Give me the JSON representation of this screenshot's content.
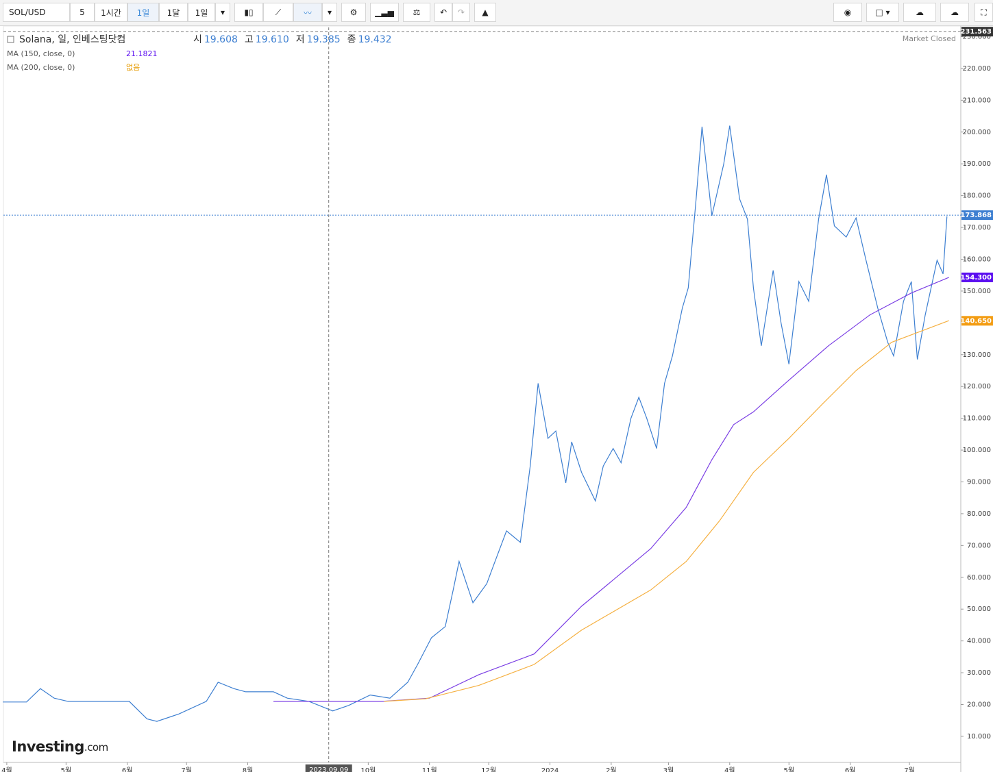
{
  "toolbar": {
    "symbol": "SOL/USD",
    "intervals": [
      "5",
      "1시간",
      "1일",
      "1달",
      "1일"
    ],
    "active": 2
  },
  "chart_data": {
    "type": "line",
    "title": "Solana, 일, 인베스팅닷컴",
    "ohlc": [
      {
        "label": "시",
        "text": "19.608"
      },
      {
        "label": "고",
        "text": "19.610"
      },
      {
        "label": "저",
        "text": "19.385"
      },
      {
        "label": "종",
        "text": "19.432"
      }
    ],
    "indicator_values": [
      "21.1821",
      "없음"
    ],
    "status": "Market Closed",
    "watermark": [
      "Investing",
      ".com"
    ],
    "series": [
      {
        "name": "Solana, 일, 인베스팅닷컴",
        "color": "#3d7fd1",
        "x": [
          -2,
          10,
          17,
          24,
          31,
          49,
          62,
          71,
          76,
          87,
          101,
          107,
          115,
          121,
          135,
          142,
          153,
          165,
          173,
          184,
          194,
          203,
          208,
          215,
          222,
          226,
          229,
          236,
          243,
          246,
          253,
          260,
          265,
          269,
          274,
          278,
          283,
          286,
          291,
          298,
          302,
          307,
          311,
          316,
          320,
          324,
          329,
          333,
          337,
          342,
          345,
          349,
          352,
          357,
          363,
          366,
          371,
          375,
          378,
          382,
          388,
          392,
          396,
          401,
          406,
          411,
          415,
          419,
          425,
          430,
          435,
          441,
          446,
          449,
          454,
          458,
          461,
          465,
          471,
          474,
          476
        ],
        "values": [
          20.8,
          20.8,
          25,
          22,
          21,
          21,
          21,
          15.5,
          14.7,
          17,
          21,
          27,
          25,
          24,
          24,
          22,
          21,
          18,
          19.7,
          23,
          22,
          27,
          32.6,
          41,
          44.5,
          56,
          65,
          52,
          58,
          63,
          74.6,
          71,
          95,
          121,
          103.7,
          106,
          89.7,
          102.6,
          93,
          84,
          95,
          100.5,
          96,
          110,
          116.6,
          110,
          100.5,
          121,
          129.6,
          144.6,
          151,
          179,
          201.7,
          173.7,
          190,
          202,
          179,
          172.6,
          151,
          132.8,
          156.5,
          140,
          127,
          153,
          146.8,
          172.6,
          186.6,
          170.5,
          167,
          173,
          159.7,
          144.6,
          133.9,
          129.6,
          146.8,
          153,
          128.5,
          142.5,
          159.7,
          155.4,
          173.5
        ]
      },
      {
        "name": "MA (150, close, 0)",
        "color": "#7b3fe4",
        "x": [
          135,
          190,
          214,
          239,
          267,
          291,
          326,
          344,
          357,
          368,
          378,
          396,
          416,
          437,
          458,
          477
        ],
        "values": [
          21,
          21,
          22,
          29.4,
          35.9,
          50.9,
          69,
          82,
          97,
          108,
          112,
          122,
          132.8,
          142.5,
          149.4,
          154.3
        ]
      },
      {
        "name": "MA (200, close, 0)",
        "color": "#f5b041",
        "x": [
          191,
          212,
          239,
          267,
          291,
          326,
          344,
          361,
          378,
          396,
          413,
          430,
          448,
          477
        ],
        "values": [
          21,
          21.8,
          26,
          32.6,
          43.4,
          56,
          65,
          77.9,
          93,
          103.7,
          114.5,
          125,
          133.9,
          140.7
        ]
      }
    ],
    "xlim": [
      -1.7,
      483
    ],
    "ylim": [
      1.8,
      232.9
    ],
    "xticks": [
      {
        "value": 0,
        "label": "4월"
      },
      {
        "value": 30,
        "label": "5월"
      },
      {
        "value": 61,
        "label": "6월"
      },
      {
        "value": 91,
        "label": "7월"
      },
      {
        "value": 122,
        "label": "8월"
      },
      {
        "value": 183,
        "label": "10월"
      },
      {
        "value": 214,
        "label": "11월"
      },
      {
        "value": 244,
        "label": "12월"
      },
      {
        "value": 275,
        "label": "2024"
      },
      {
        "value": 306,
        "label": "2월"
      },
      {
        "value": 335,
        "label": "3월"
      },
      {
        "value": 366,
        "label": "4월"
      },
      {
        "value": 396,
        "label": "5월"
      },
      {
        "value": 427,
        "label": "6월"
      },
      {
        "value": 457,
        "label": "7월"
      }
    ],
    "yticks": [
      {
        "value": 10,
        "label": "10.000"
      },
      {
        "value": 20,
        "label": "20.000"
      },
      {
        "value": 30,
        "label": "30.000"
      },
      {
        "value": 40,
        "label": "40.000"
      },
      {
        "value": 50,
        "label": "50.000"
      },
      {
        "value": 60,
        "label": "60.000"
      },
      {
        "value": 70,
        "label": "70.000"
      },
      {
        "value": 80,
        "label": "80.000"
      },
      {
        "value": 90,
        "label": "90.000"
      },
      {
        "value": 100,
        "label": "100.000"
      },
      {
        "value": 110,
        "label": "110.000"
      },
      {
        "value": 120,
        "label": "120.000"
      },
      {
        "value": 130,
        "label": "130.000"
      },
      {
        "value": 140,
        "label": "140.000"
      },
      {
        "value": 150,
        "label": "150.000"
      },
      {
        "value": 160,
        "label": "160.000"
      },
      {
        "value": 170,
        "label": "170.000"
      },
      {
        "value": 180,
        "label": "180.000"
      },
      {
        "value": 190,
        "label": "190.000"
      },
      {
        "value": 200,
        "label": "200.000"
      },
      {
        "value": 210,
        "label": "210.000"
      },
      {
        "value": 220,
        "label": "220.000"
      },
      {
        "value": 230,
        "label": "230.000"
      }
    ],
    "crosshair": {
      "x": 163,
      "label": "2023.09.09",
      "y": 173.868
    },
    "price_labels": [
      {
        "value": 231.563,
        "color": "#333333"
      },
      {
        "value": 173.868,
        "color": "#3d7fd1"
      },
      {
        "value": 154.3,
        "label": "154.300",
        "color": "#5b0ef0"
      },
      {
        "value": 140.65,
        "label": "140.650",
        "color": "#f39c12"
      }
    ]
  }
}
